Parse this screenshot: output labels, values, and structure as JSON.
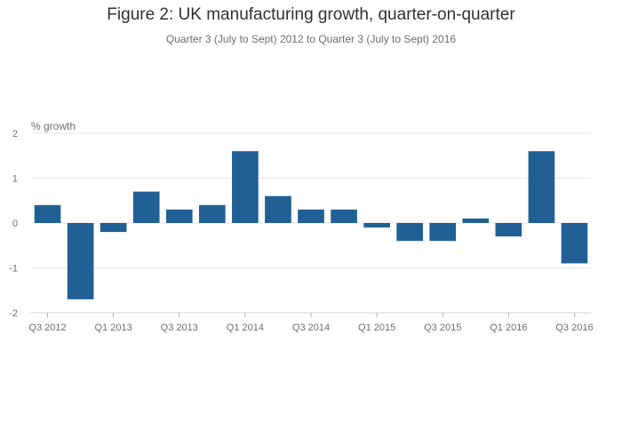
{
  "chart_data": {
    "type": "bar",
    "title": "Figure 2: UK manufacturing growth, quarter-on-quarter",
    "subtitle": "Quarter 3 (July to Sept) 2012 to Quarter 3 (July to Sept) 2016",
    "ylabel": "% growth",
    "xlabel": "",
    "categories": [
      "Q3 2012",
      "Q4 2012",
      "Q1 2013",
      "Q2 2013",
      "Q3 2013",
      "Q4 2013",
      "Q1 2014",
      "Q2 2014",
      "Q3 2014",
      "Q4 2014",
      "Q1 2015",
      "Q2 2015",
      "Q3 2015",
      "Q4 2015",
      "Q1 2016",
      "Q2 2016",
      "Q3 2016"
    ],
    "values": [
      0.4,
      -1.7,
      -0.2,
      0.7,
      0.3,
      0.4,
      1.6,
      0.6,
      0.3,
      0.3,
      -0.1,
      -0.4,
      -0.4,
      0.1,
      -0.3,
      1.6,
      -0.9
    ],
    "x_tick_labels": [
      "Q3 2012",
      "Q1 2013",
      "Q3 2013",
      "Q1 2014",
      "Q3 2014",
      "Q1 2015",
      "Q3 2015",
      "Q1 2016",
      "Q3 2016"
    ],
    "y_ticks": [
      2,
      1,
      0,
      -1,
      -2
    ],
    "ylim": [
      -2,
      2
    ],
    "grid": true,
    "bar_color": "#206095",
    "grid_color": "#e6e6e6"
  }
}
